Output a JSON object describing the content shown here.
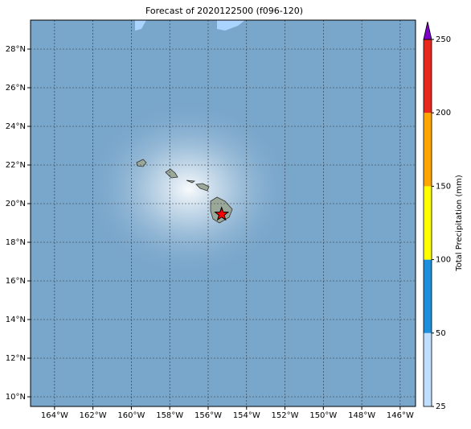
{
  "map": {
    "title": "Forecast of 2020122500 (f096-120)",
    "lonlim": [
      -165.25,
      -145.2
    ],
    "latlim": [
      9.5,
      29.5
    ],
    "lon_ticks": [
      {
        "value": -164,
        "label": "164°W"
      },
      {
        "value": -162,
        "label": "162°W"
      },
      {
        "value": -160,
        "label": "160°W"
      },
      {
        "value": -158,
        "label": "158°W"
      },
      {
        "value": -156,
        "label": "156°W"
      },
      {
        "value": -154,
        "label": "154°W"
      },
      {
        "value": -152,
        "label": "152°W"
      },
      {
        "value": -150,
        "label": "150°W"
      },
      {
        "value": -148,
        "label": "148°W"
      },
      {
        "value": -146,
        "label": "146°W"
      }
    ],
    "lat_ticks": [
      {
        "value": 10,
        "label": "10°N"
      },
      {
        "value": 12,
        "label": "12°N"
      },
      {
        "value": 14,
        "label": "14°N"
      },
      {
        "value": 16,
        "label": "16°N"
      },
      {
        "value": 18,
        "label": "18°N"
      },
      {
        "value": 20,
        "label": "20°N"
      },
      {
        "value": 22,
        "label": "22°N"
      },
      {
        "value": 24,
        "label": "24°N"
      },
      {
        "value": 26,
        "label": "26°N"
      },
      {
        "value": 28,
        "label": "28°N"
      }
    ],
    "marker": {
      "lon": -155.3,
      "lat": 19.45,
      "color": "#ff0000"
    },
    "colorbar": {
      "label": "Total Precipitation (mm)",
      "ticks": [
        25,
        50,
        100,
        150,
        200,
        250
      ],
      "colors": [
        "#c0deff",
        "#1e8fdc",
        "#ffff00",
        "#ffa500",
        "#e8281c"
      ],
      "extend_color": "#7d00c8"
    }
  }
}
